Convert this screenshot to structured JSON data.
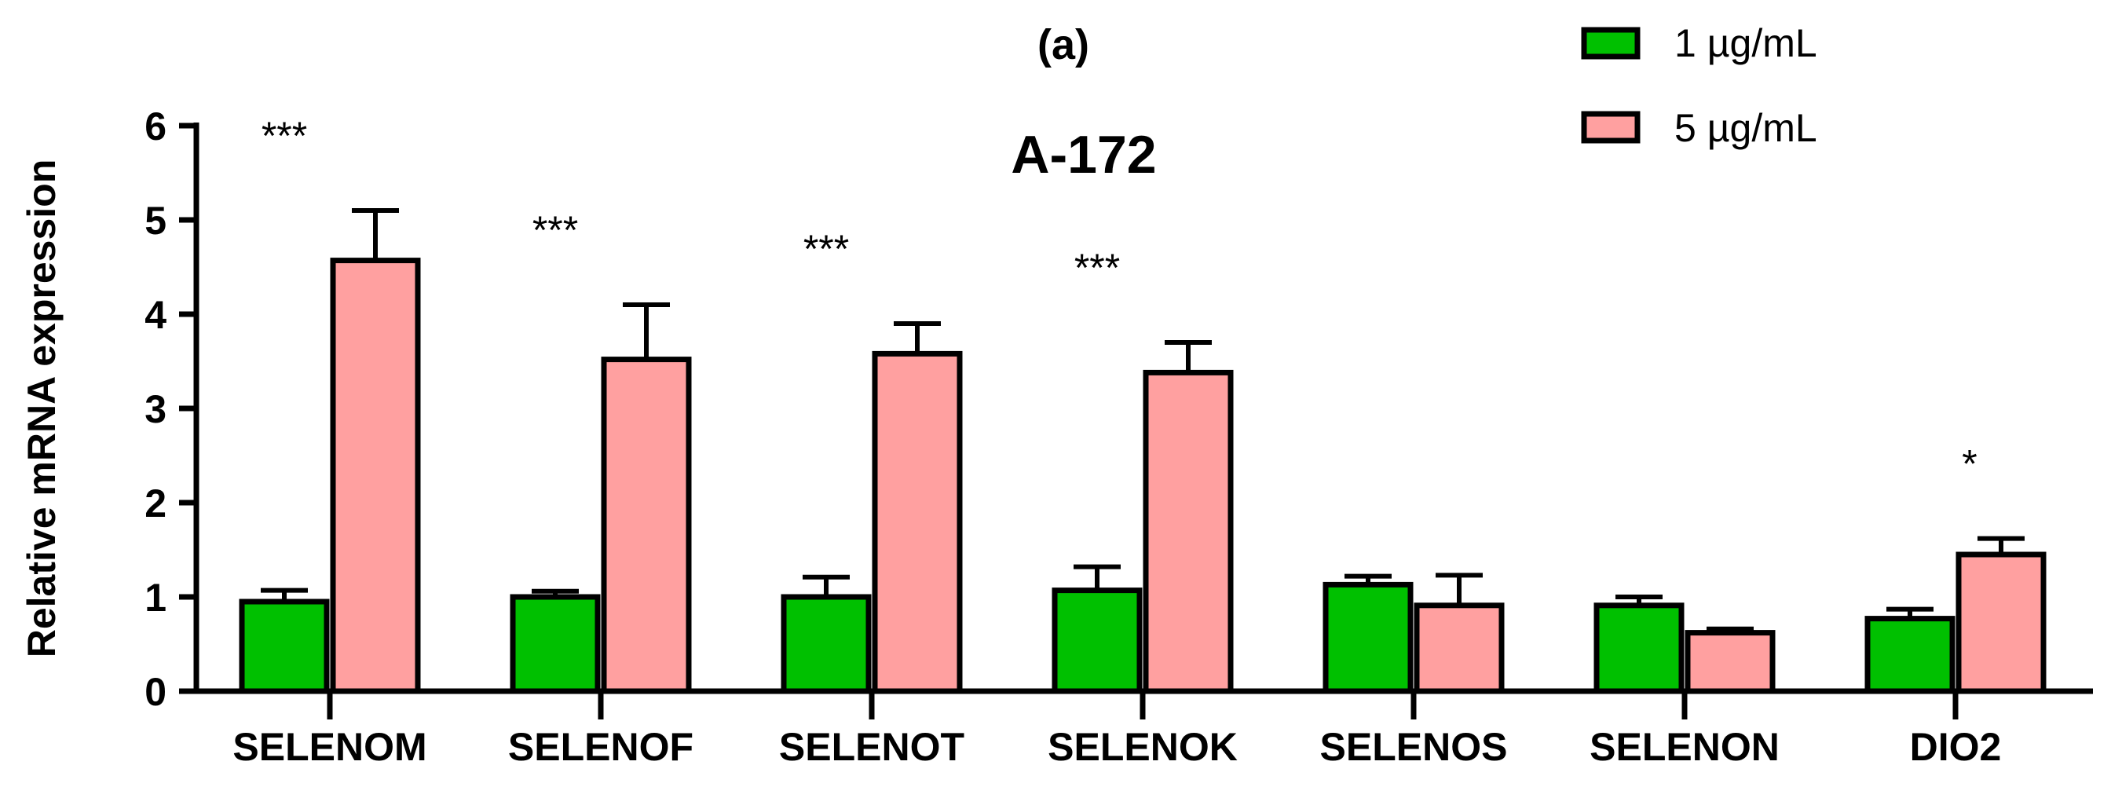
{
  "chart_data": {
    "type": "bar",
    "panel_label": "(a)",
    "title": "A-172",
    "xlabel": "",
    "ylabel": "Relative mRNA expression",
    "ylim": [
      0,
      6
    ],
    "yticks": [
      "0",
      "1",
      "2",
      "3",
      "4",
      "5",
      "6"
    ],
    "grid": false,
    "legend_position": "top-right",
    "categories": [
      "SELENOM",
      "SELENOF",
      "SELENOT",
      "SELENOK",
      "SELENOS",
      "SELENON",
      "DIO2"
    ],
    "series": [
      {
        "name": "1 µg/mL",
        "color": "#00c000",
        "values": [
          0.95,
          1.0,
          1.0,
          1.07,
          1.13,
          0.91,
          0.77
        ],
        "error": [
          0.12,
          0.06,
          0.21,
          0.25,
          0.09,
          0.09,
          0.1
        ]
      },
      {
        "name": "5 µg/mL",
        "color": "#ffa0a0",
        "values": [
          4.57,
          3.52,
          3.58,
          3.38,
          0.91,
          0.62,
          1.45
        ],
        "error": [
          0.53,
          0.58,
          0.32,
          0.32,
          0.32,
          0.04,
          0.17
        ]
      }
    ],
    "annotations": [
      "***",
      "***",
      "***",
      "***",
      "",
      "",
      "*"
    ]
  }
}
